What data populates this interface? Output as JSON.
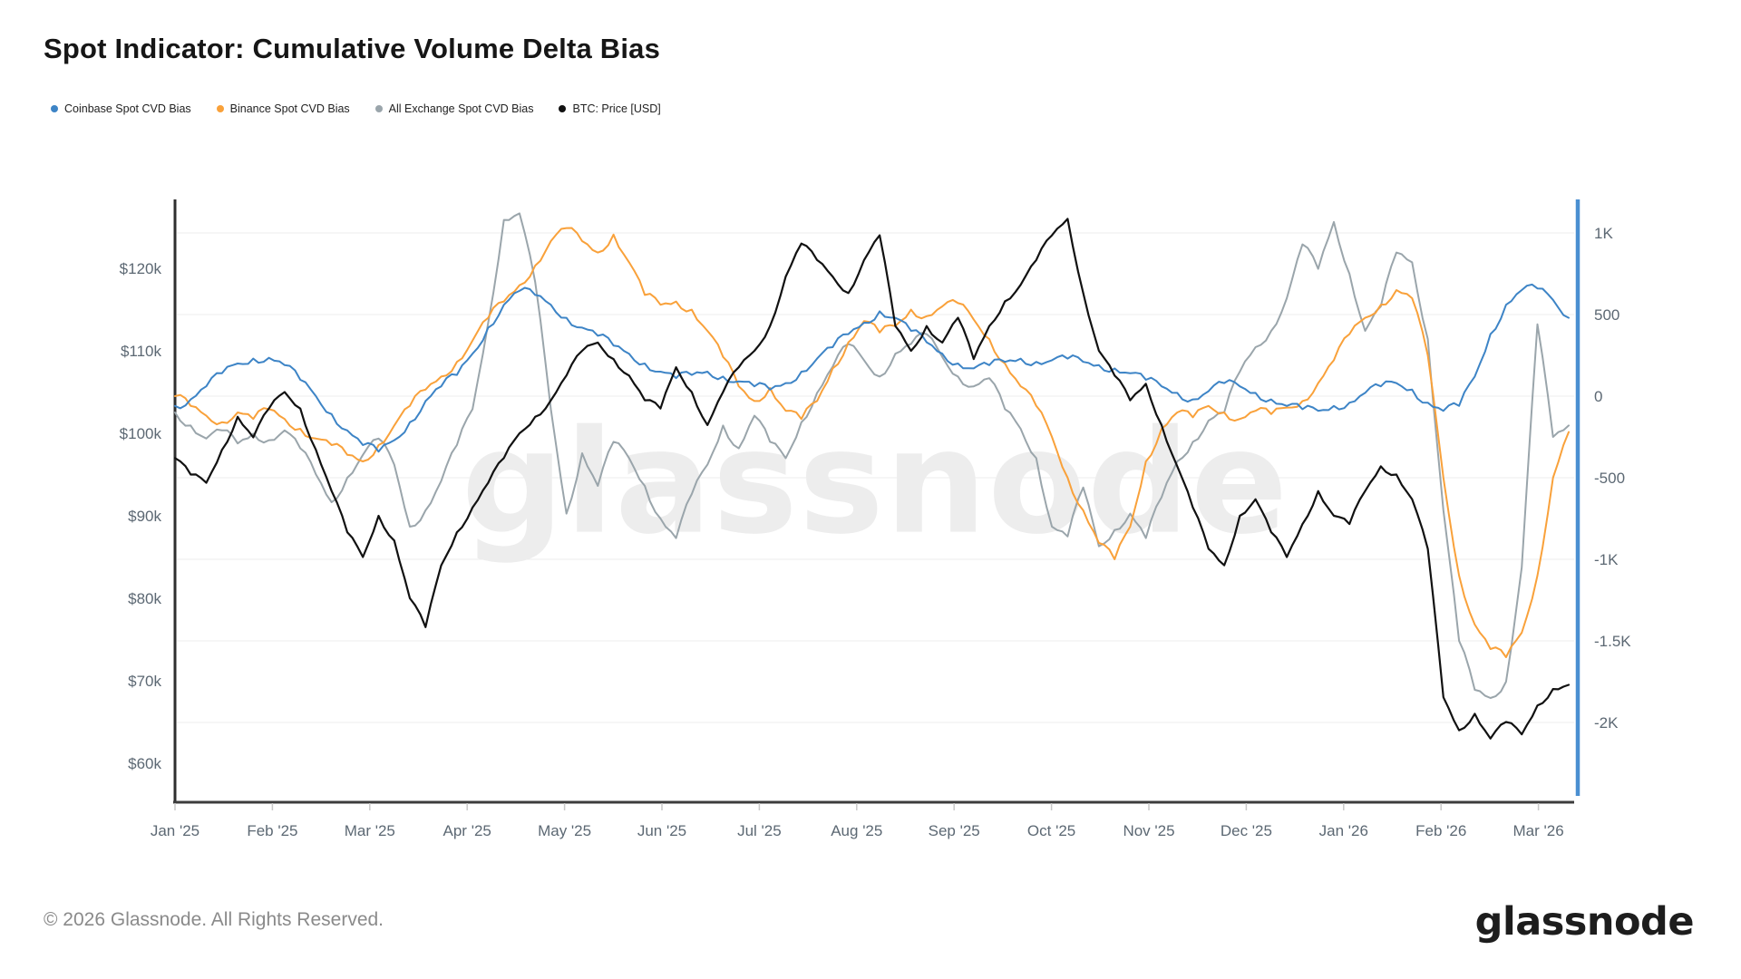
{
  "title": "Spot Indicator: Cumulative Volume Delta Bias",
  "watermark": "glassnode",
  "footer": {
    "copyright": "© 2026 Glassnode. All Rights Reserved.",
    "logo": "glassnode"
  },
  "legend": [
    {
      "label": "Coinbase Spot CVD Bias",
      "color": "#3d84c6"
    },
    {
      "label": "Binance Spot CVD Bias",
      "color": "#f9a13a"
    },
    {
      "label": "All Exchange Spot CVD Bias",
      "color": "#9aa5ab"
    },
    {
      "label": "BTC: Price [USD]",
      "color": "#111111"
    }
  ],
  "chart_data": {
    "type": "line",
    "title": "Spot Indicator: Cumulative Volume Delta Bias",
    "x_axis": {
      "labels": [
        "Jan '25",
        "Feb '25",
        "Mar '25",
        "Apr '25",
        "May '25",
        "Jun '25",
        "Jul '25",
        "Aug '25",
        "Sep '25",
        "Oct '25",
        "Nov '25",
        "Dec '25",
        "Jan '26",
        "Feb '26",
        "Mar '26"
      ],
      "grid": false
    },
    "left_axis": {
      "title": "BTC Price [USD]",
      "tick_labels": [
        "$120k",
        "$110k",
        "$100k",
        "$90k",
        "$80k",
        "$70k",
        "$60k"
      ],
      "tick_values": [
        120,
        110,
        100,
        90,
        80,
        70,
        60
      ],
      "range_k": [
        55,
        128
      ]
    },
    "right_axis": {
      "title": "Spot CVD Bias",
      "tick_labels": [
        "1K",
        "500",
        "0",
        "-500",
        "-1K",
        "-1.5K",
        "-2K"
      ],
      "tick_values": [
        1000,
        500,
        0,
        -500,
        -1000,
        -1500,
        -2000
      ],
      "range": [
        -2490,
        1200
      ],
      "axis_color": "#4a8fd1"
    },
    "colors": {
      "grid": "#ededed",
      "left_axis_line": "#2e2e2e",
      "bottom_axis_line": "#3c3c3c",
      "right_axis_line": "#4a8fd1",
      "tick_mark": "#c9c9c9"
    },
    "series": [
      {
        "name": "Coinbase Spot CVD Bias",
        "axis": "right",
        "color": "#3d84c6",
        "width": 2,
        "values": [
          -60,
          -20,
          60,
          140,
          200,
          230,
          235,
          190,
          100,
          0,
          -110,
          -210,
          -300,
          -340,
          -270,
          -160,
          -30,
          60,
          130,
          260,
          420,
          560,
          645,
          620,
          560,
          480,
          420,
          370,
          310,
          260,
          200,
          150,
          110,
          130,
          150,
          120,
          90,
          60,
          40,
          80,
          150,
          230,
          300,
          380,
          450,
          520,
          480,
          400,
          330,
          260,
          200,
          170,
          190,
          210,
          230,
          210,
          220,
          230,
          210,
          190,
          170,
          140,
          100,
          60,
          20,
          -20,
          30,
          80,
          60,
          20,
          -20,
          -60,
          -80,
          -90,
          -60,
          -40,
          20,
          60,
          80,
          40,
          -40,
          -90,
          -60,
          120,
          380,
          560,
          650,
          660,
          590,
          480
        ]
      },
      {
        "name": "Binance Spot CVD Bias",
        "axis": "right",
        "color": "#f9a13a",
        "width": 2,
        "values": [
          0,
          -60,
          -120,
          -160,
          -100,
          -140,
          -80,
          -140,
          -200,
          -260,
          -300,
          -360,
          -400,
          -300,
          -180,
          -60,
          40,
          120,
          210,
          340,
          480,
          580,
          680,
          800,
          950,
          1030,
          950,
          880,
          990,
          820,
          620,
          560,
          580,
          530,
          400,
          240,
          60,
          -30,
          50,
          -90,
          -140,
          -30,
          170,
          330,
          460,
          390,
          430,
          530,
          490,
          550,
          570,
          470,
          350,
          200,
          60,
          -60,
          -250,
          -500,
          -700,
          -900,
          -1000,
          -800,
          -400,
          -200,
          -100,
          -130,
          -60,
          -100,
          -140,
          -90,
          -110,
          -70,
          -30,
          80,
          220,
          380,
          480,
          560,
          650,
          600,
          250,
          -500,
          -1100,
          -1400,
          -1550,
          -1600,
          -1450,
          -1100,
          -500,
          -220
        ]
      },
      {
        "name": "All Exchange Spot CVD Bias",
        "axis": "right",
        "color": "#9aa5ab",
        "width": 2,
        "values": [
          -100,
          -180,
          -260,
          -210,
          -290,
          -230,
          -270,
          -210,
          -320,
          -480,
          -650,
          -500,
          -360,
          -260,
          -420,
          -800,
          -700,
          -520,
          -300,
          -80,
          450,
          1080,
          1120,
          700,
          -80,
          -720,
          -350,
          -550,
          -280,
          -380,
          -550,
          -750,
          -870,
          -600,
          -420,
          -180,
          -320,
          -120,
          -280,
          -380,
          -160,
          20,
          180,
          320,
          220,
          120,
          260,
          320,
          380,
          240,
          120,
          60,
          110,
          -80,
          -200,
          -380,
          -800,
          -860,
          -560,
          -920,
          -820,
          -720,
          -870,
          -620,
          -400,
          -280,
          -150,
          -100,
          150,
          300,
          400,
          600,
          930,
          780,
          1067,
          750,
          400,
          550,
          880,
          820,
          350,
          -700,
          -1500,
          -1800,
          -1850,
          -1750,
          -1050,
          440,
          -250,
          -180
        ]
      },
      {
        "name": "BTC: Price [USD]",
        "axis": "left",
        "color": "#111111",
        "width": 2.2,
        "values": [
          97,
          95,
          94,
          98,
          102,
          99.5,
          103,
          105,
          103,
          98,
          93,
          88,
          85,
          90,
          87,
          80,
          76.5,
          84,
          88,
          91,
          94,
          97,
          100,
          102,
          104,
          107,
          110,
          111,
          109,
          107,
          104,
          103,
          108,
          105,
          101,
          105,
          108,
          110,
          113,
          119,
          123,
          121,
          119,
          117,
          121,
          124,
          113,
          110,
          113,
          111,
          114,
          109,
          113,
          116,
          118,
          121,
          124,
          126,
          117,
          110,
          107,
          104,
          106,
          101,
          96,
          91,
          86,
          84,
          90,
          92,
          88,
          85,
          89,
          93,
          90,
          89,
          93,
          96,
          95,
          92,
          86,
          68,
          64,
          66,
          63,
          65,
          63.5,
          67,
          69,
          69.5
        ]
      }
    ]
  }
}
